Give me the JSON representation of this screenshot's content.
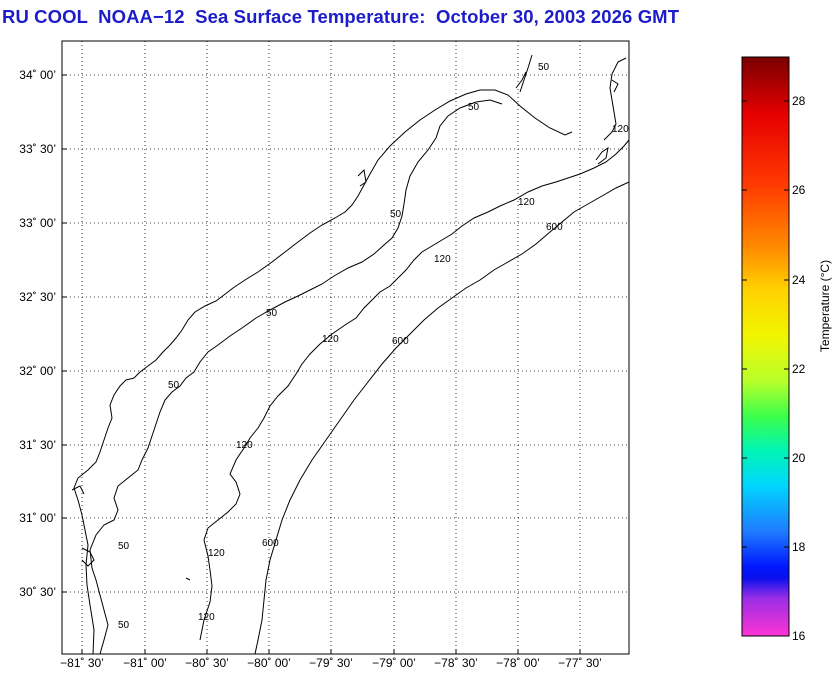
{
  "title": "RU COOL  NOAA−12  Sea Surface Temperature:  October 30, 2003 2026 GMT",
  "map": {
    "lat_labels": [
      "34˚ 00’",
      "33˚ 30’",
      "33˚ 00’",
      "32˚ 30’",
      "32˚ 00’",
      "31˚ 30’",
      "31˚ 00’",
      "30˚ 30’"
    ],
    "lon_labels": [
      "−81˚ 30’",
      "−81˚ 00’",
      "−80˚ 30’",
      "−80˚ 00’",
      "−79˚ 30’",
      "−79˚ 00’",
      "−78˚ 30’",
      "−78˚ 00’",
      "−77˚ 30’"
    ],
    "contour_labels": {
      "c50": [
        "50",
        "50",
        "50",
        "50",
        "50",
        "50",
        "50"
      ],
      "c120": [
        "120",
        "120",
        "120",
        "120",
        "120",
        "120",
        "120"
      ],
      "c600": [
        "600",
        "600",
        "600"
      ]
    }
  },
  "colorbar": {
    "label": "Temperature (°C)",
    "ticks": [
      "28",
      "26",
      "24",
      "22",
      "20",
      "18",
      "16"
    ],
    "min": 16,
    "max": 29
  }
}
